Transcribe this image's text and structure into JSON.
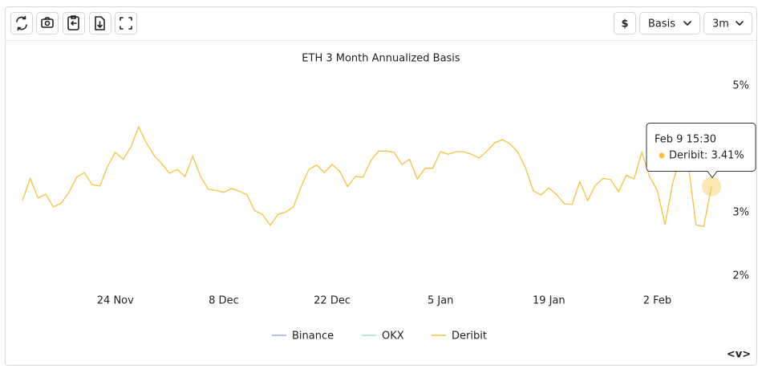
{
  "ui": {
    "buttons": [
      "$",
      "Basis",
      "3m"
    ],
    "corner": "<v>"
  },
  "chart_data": {
    "type": "line",
    "title": "ETH 3 Month Annualized Basis",
    "categories": [
      null,
      null,
      null,
      null,
      null,
      null,
      null,
      null,
      null,
      null,
      null,
      null,
      "24 Nov",
      null,
      null,
      null,
      null,
      null,
      null,
      null,
      null,
      null,
      null,
      null,
      null,
      null,
      "8 Dec",
      null,
      null,
      null,
      null,
      null,
      null,
      null,
      null,
      null,
      null,
      null,
      null,
      null,
      "22 Dec",
      null,
      null,
      null,
      null,
      null,
      null,
      null,
      null,
      null,
      null,
      null,
      null,
      null,
      "5 Jan",
      null,
      null,
      null,
      null,
      null,
      null,
      null,
      null,
      null,
      null,
      null,
      null,
      null,
      "19 Jan",
      null,
      null,
      null,
      null,
      null,
      null,
      null,
      null,
      null,
      null,
      null,
      null,
      null,
      "2 Feb",
      null,
      null,
      null,
      null,
      null,
      null,
      null
    ],
    "series": [
      {
        "name": "Binance",
        "color": "#7b9be0",
        "visible": false
      },
      {
        "name": "OKX",
        "color": "#8fd8cf",
        "visible": false
      },
      {
        "name": "Deribit",
        "color": "#f5c242",
        "visible": true,
        "values": [
          3.19,
          3.54,
          3.23,
          3.29,
          3.09,
          3.15,
          3.32,
          3.56,
          3.63,
          3.44,
          3.42,
          3.73,
          3.95,
          3.84,
          4.03,
          4.35,
          4.1,
          3.9,
          3.77,
          3.62,
          3.68,
          3.57,
          3.89,
          3.57,
          3.37,
          3.35,
          3.32,
          3.38,
          3.34,
          3.28,
          3.03,
          2.97,
          2.8,
          2.97,
          3.01,
          3.09,
          3.41,
          3.68,
          3.75,
          3.63,
          3.76,
          3.65,
          3.41,
          3.57,
          3.56,
          3.82,
          3.97,
          3.97,
          3.95,
          3.76,
          3.84,
          3.53,
          3.7,
          3.7,
          3.96,
          3.92,
          3.96,
          3.96,
          3.92,
          3.86,
          3.97,
          4.1,
          4.15,
          4.08,
          3.95,
          3.7,
          3.34,
          3.28,
          3.39,
          3.28,
          3.14,
          3.13,
          3.49,
          3.19,
          3.43,
          3.54,
          3.52,
          3.33,
          3.59,
          3.53,
          3.95,
          3.57,
          3.35,
          2.81,
          3.47,
          3.87,
          3.76,
          2.81,
          2.78,
          3.41
        ]
      }
    ],
    "ylim": [
      1.8,
      5.15
    ],
    "yticks": [
      {
        "value": 2,
        "label": "2%"
      },
      {
        "value": 3,
        "label": "3%"
      },
      {
        "value": 5,
        "label": "5%"
      }
    ],
    "grid": false,
    "legend": "bottom",
    "tooltip": {
      "title": "Feb 9 15:30",
      "label": "Deribit: 3.41%"
    }
  }
}
